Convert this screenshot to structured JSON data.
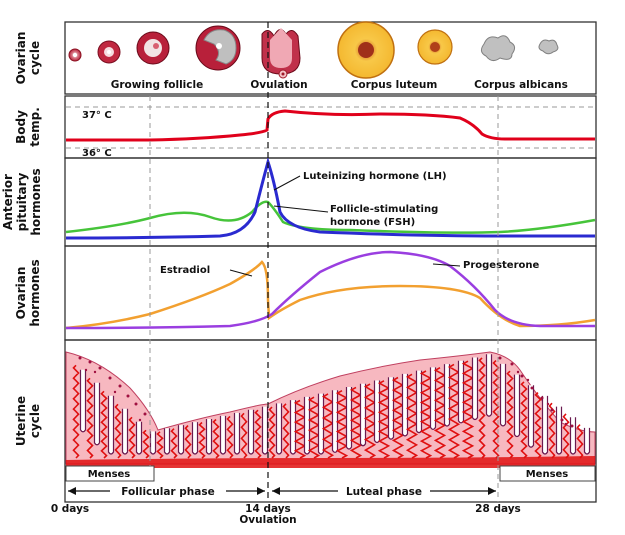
{
  "panels": {
    "ovarian_cycle": "Ovarian\ncycle",
    "body_temp": "Body\ntemp.",
    "anterior_pituitary": "Anterior\npituitary\nhormones",
    "ovarian_hormones": "Ovarian\nhormones",
    "uterine_cycle": "Uterine\ncycle"
  },
  "ovary_stages": {
    "growing_follicle": "Growing follicle",
    "ovulation": "Ovulation",
    "corpus_luteum": "Corpus luteum",
    "corpus_albicans": "Corpus albicans"
  },
  "temperature": {
    "high": "37° C",
    "low": "36° C"
  },
  "hormones": {
    "lh": "Luteinizing hormone (LH)",
    "fsh_line1": "Follicle-stimulating",
    "fsh_line2": "hormone (FSH)",
    "estradiol": "Estradiol",
    "progesterone": "Progesterone"
  },
  "uterine": {
    "menses_left": "Menses",
    "menses_right": "Menses"
  },
  "phases": {
    "follicular": "Follicular phase",
    "luteal": "Luteal phase"
  },
  "timeline": {
    "day0": "0 days",
    "day14": "14 days",
    "ovulation": "Ovulation",
    "day28": "28 days"
  },
  "colors": {
    "temperature": "#e0001b",
    "lh": "#2a2ad0",
    "fsh": "#46c43a",
    "estradiol": "#f2a030",
    "progesterone": "#9a3ee0",
    "endometrium": "#f7b8c0",
    "vessel": "#e01010",
    "gland": "#6a1a50"
  }
}
